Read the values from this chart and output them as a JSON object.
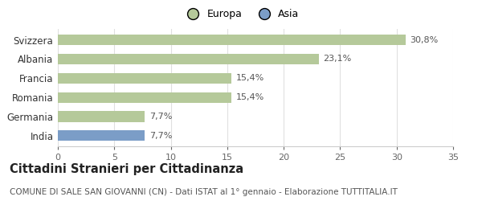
{
  "categories": [
    "India",
    "Germania",
    "Romania",
    "Francia",
    "Albania",
    "Svizzera"
  ],
  "values": [
    7.7,
    7.7,
    15.4,
    15.4,
    23.1,
    30.8
  ],
  "labels": [
    "7,7%",
    "7,7%",
    "15,4%",
    "15,4%",
    "23,1%",
    "30,8%"
  ],
  "bar_colors": [
    "#7b9dc7",
    "#b5c99a",
    "#b5c99a",
    "#b5c99a",
    "#b5c99a",
    "#b5c99a"
  ],
  "legend_items": [
    {
      "label": "Europa",
      "color": "#b5c99a"
    },
    {
      "label": "Asia",
      "color": "#7b9dc7"
    }
  ],
  "xlim": [
    0,
    35
  ],
  "xticks": [
    0,
    5,
    10,
    15,
    20,
    25,
    30,
    35
  ],
  "title": "Cittadini Stranieri per Cittadinanza",
  "subtitle": "COMUNE DI SALE SAN GIOVANNI (CN) - Dati ISTAT al 1° gennaio - Elaborazione TUTTITALIA.IT",
  "title_fontsize": 10.5,
  "subtitle_fontsize": 7.5,
  "background_color": "#ffffff",
  "bar_height": 0.55
}
